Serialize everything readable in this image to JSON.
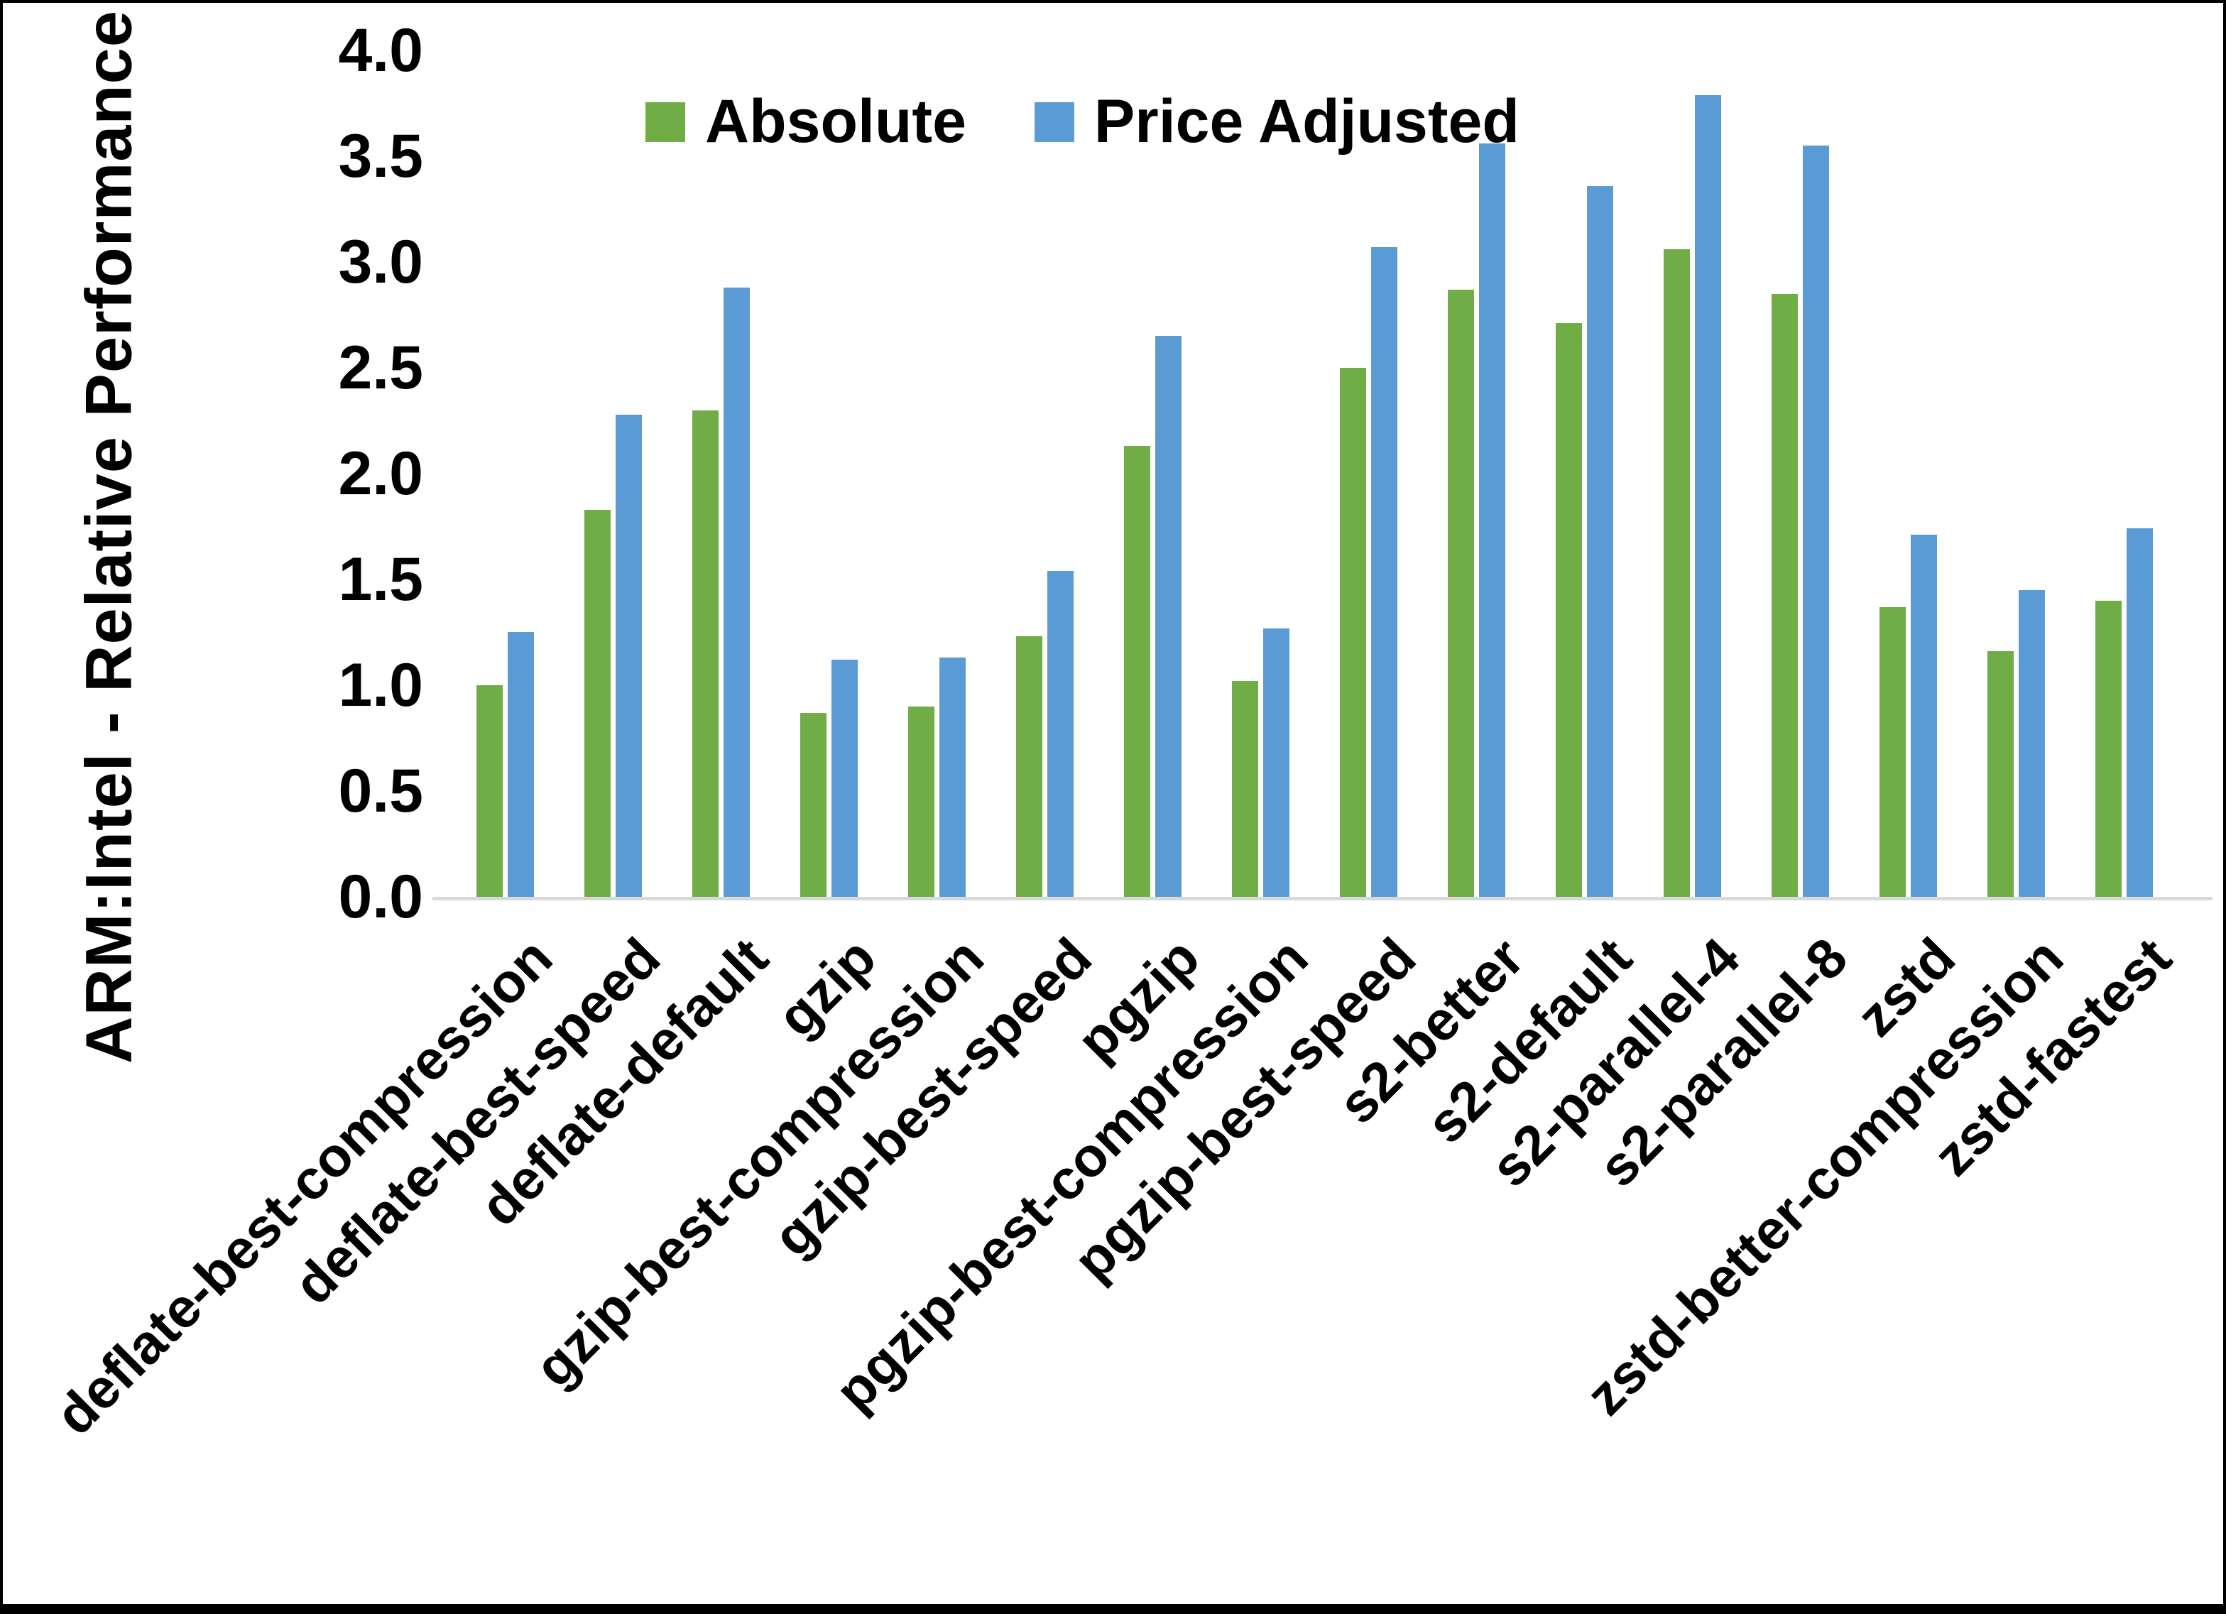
{
  "chart_data": {
    "type": "bar",
    "title": "",
    "xlabel": "",
    "ylabel": "ARM:Intel - Relative Performance",
    "ylim": [
      0.0,
      4.0
    ],
    "ytick_labels": [
      "0.0",
      "0.5",
      "1.0",
      "1.5",
      "2.0",
      "2.5",
      "3.0",
      "3.5",
      "4.0"
    ],
    "grid": false,
    "legend_position": "top-center",
    "axis_line_color": "#d9d9d9",
    "categories": [
      "deflate-best-compression",
      "deflate-best-speed",
      "deflate-default",
      "gzip",
      "gzip-best-compression",
      "gzip-best-speed",
      "pgzip",
      "pgzip-best-compression",
      "pgzip-best-speed",
      "s2-better",
      "s2-default",
      "s2-parallel-4",
      "s2-parallel-8",
      "zstd",
      "zstd-better-compression",
      "zstd-fastest"
    ],
    "series": [
      {
        "name": "Absolute",
        "color": "#70ad47",
        "values": [
          1.0,
          1.83,
          2.3,
          0.87,
          0.9,
          1.23,
          2.13,
          1.02,
          2.5,
          2.87,
          2.71,
          3.06,
          2.85,
          1.37,
          1.16,
          1.4
        ]
      },
      {
        "name": "Price Adjusted",
        "color": "#5b9bd5",
        "values": [
          1.25,
          2.28,
          2.88,
          1.12,
          1.13,
          1.54,
          2.65,
          1.27,
          3.07,
          3.56,
          3.36,
          3.79,
          3.55,
          1.71,
          1.45,
          1.74
        ]
      }
    ]
  }
}
